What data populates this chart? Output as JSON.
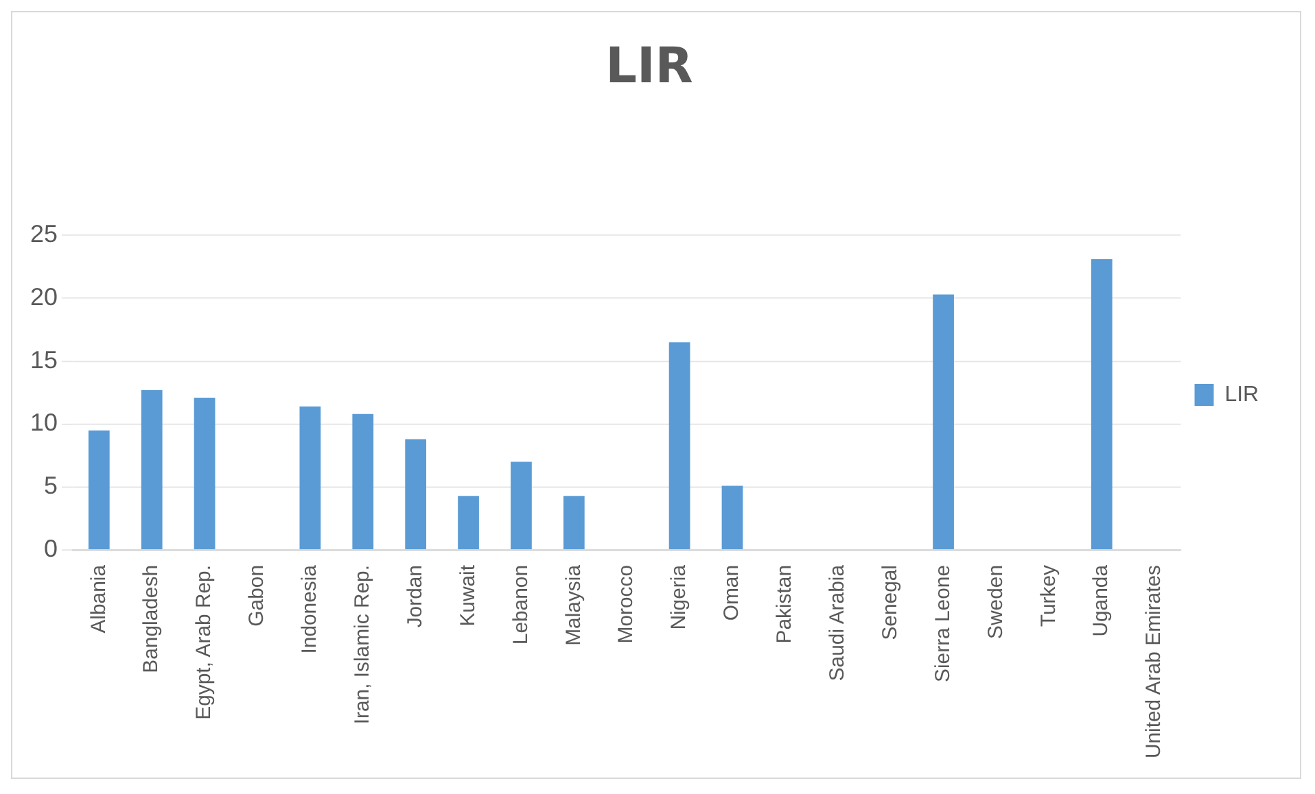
{
  "chart_data": {
    "type": "bar",
    "title": "LIR",
    "categories": [
      "Albania",
      "Bangladesh",
      "Egypt, Arab Rep.",
      "Gabon",
      "Indonesia",
      "Iran, Islamic Rep.",
      "Jordan",
      "Kuwait",
      "Lebanon",
      "Malaysia",
      "Morocco",
      "Nigeria",
      "Oman",
      "Pakistan",
      "Saudi Arabia",
      "Senegal",
      "Sierra Leone",
      "Sweden",
      "Turkey",
      "Uganda",
      "United Arab Emirates"
    ],
    "series": [
      {
        "name": "LIR",
        "color": "#5b9bd5",
        "values": [
          9.5,
          12.7,
          12.1,
          null,
          11.4,
          10.8,
          8.8,
          4.3,
          7,
          4.3,
          null,
          16.5,
          5.1,
          null,
          null,
          null,
          20.3,
          null,
          null,
          23.1,
          null
        ]
      }
    ],
    "ylim": [
      0,
      25
    ],
    "yticks": [
      0,
      5,
      10,
      15,
      20,
      25
    ],
    "grid": "y",
    "legend": "right"
  }
}
